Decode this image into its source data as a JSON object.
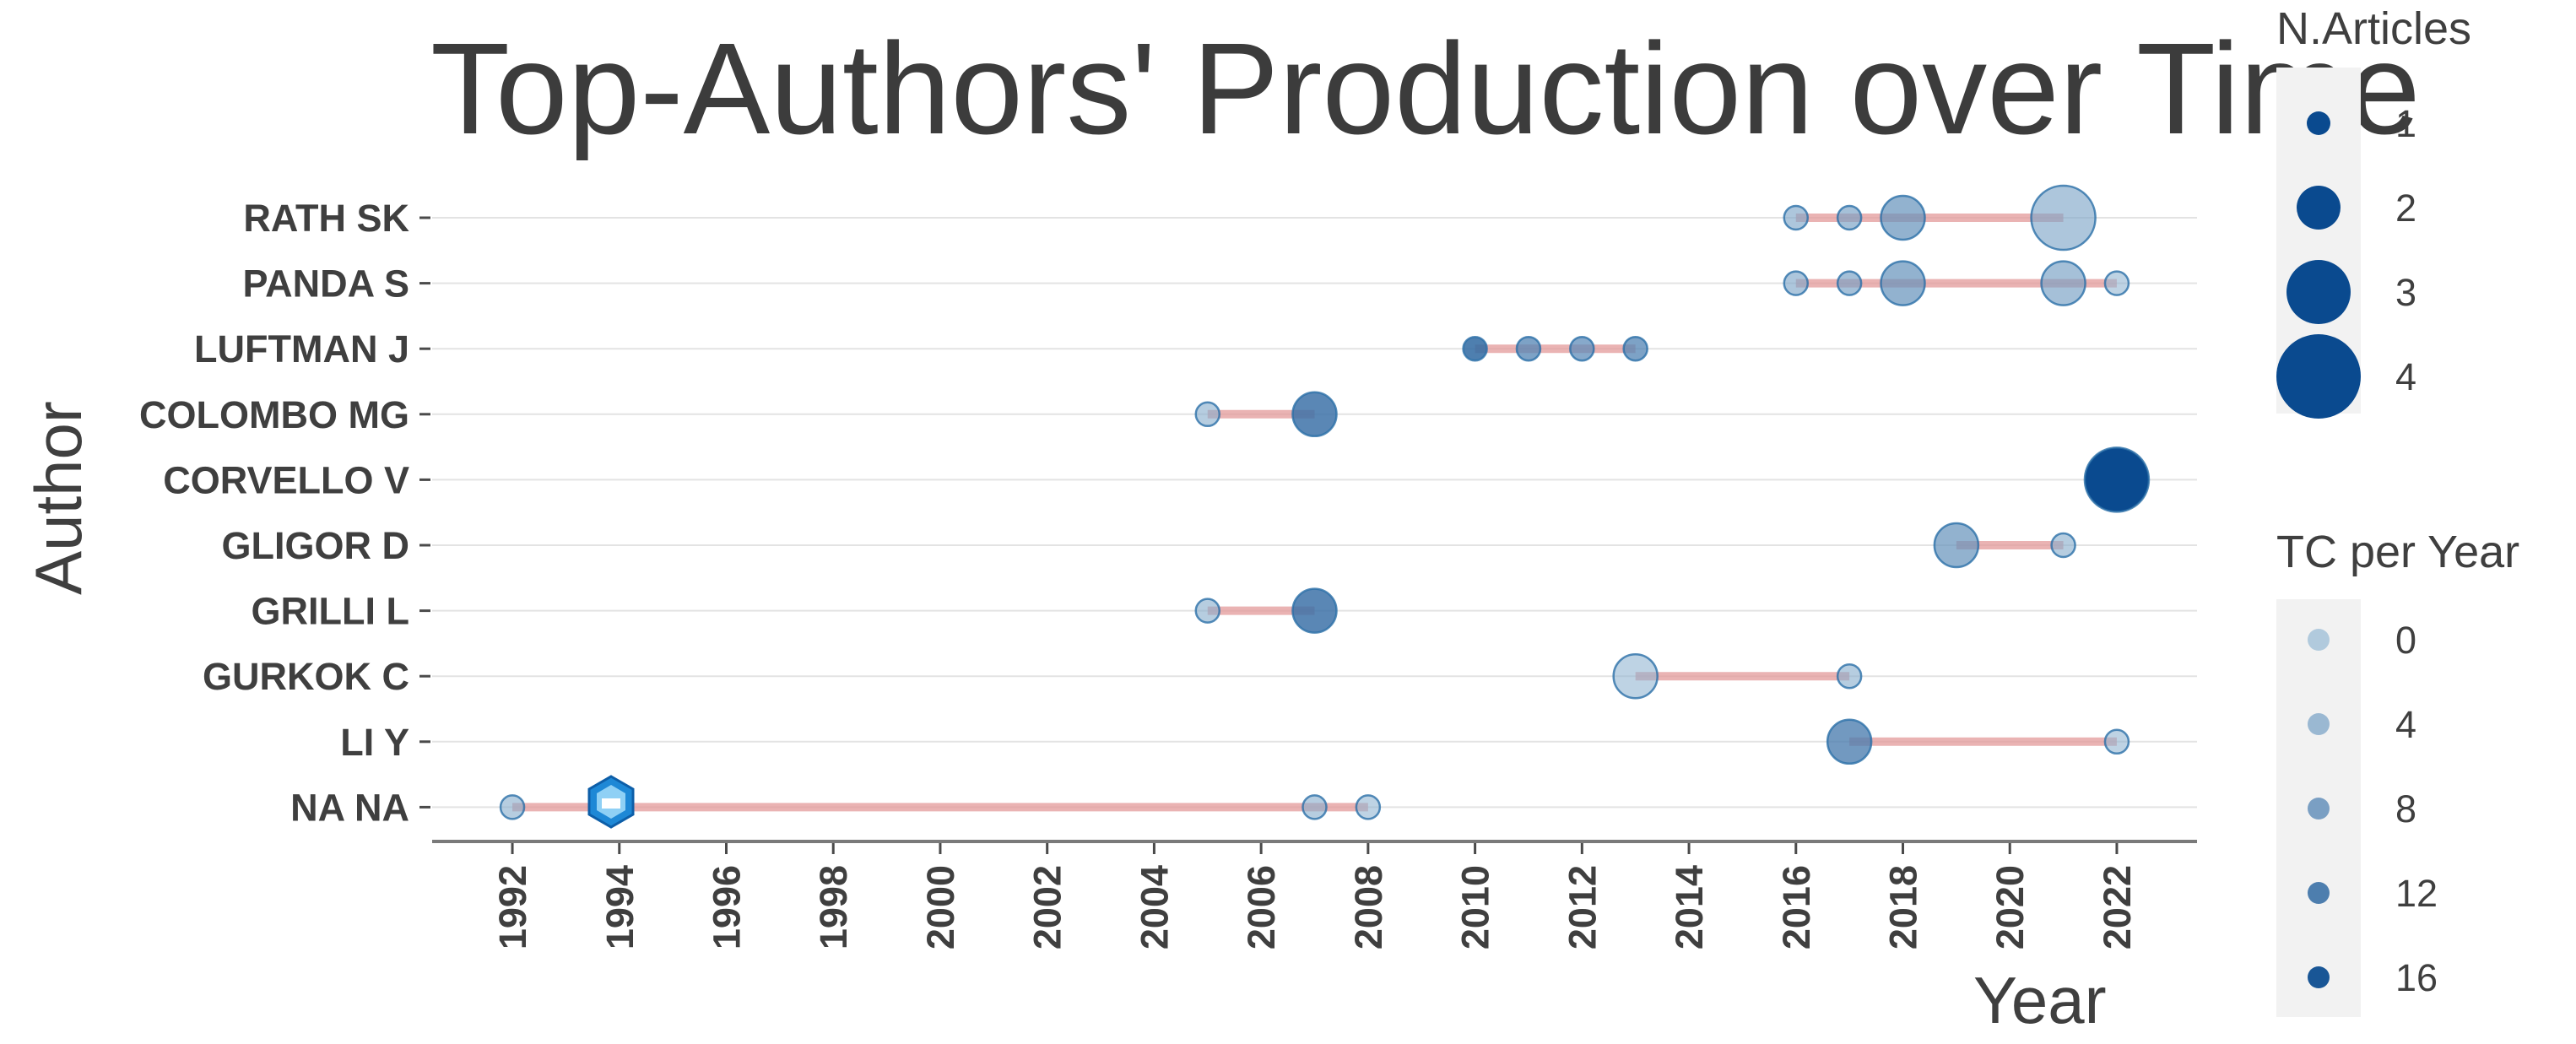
{
  "chart_data": {
    "type": "scatter",
    "title": "Top-Authors' Production over Time",
    "xlabel": "Year",
    "ylabel": "Author",
    "xlim": [
      1990.5,
      2023.5
    ],
    "x_ticks": [
      "1992",
      "1994",
      "1996",
      "1998",
      "2000",
      "2002",
      "2004",
      "2006",
      "2008",
      "2010",
      "2012",
      "2014",
      "2016",
      "2018",
      "2020",
      "2022"
    ],
    "authors": [
      "RATH SK",
      "PANDA S",
      "LUFTMAN J",
      "COLOMBO MG",
      "CORVELLO V",
      "GLIGOR D",
      "GRILLI L",
      "GURKOK C",
      "LI Y",
      "NA NA"
    ],
    "series": [
      {
        "author": "RATH SK",
        "range": [
          2016,
          2021
        ],
        "points": [
          {
            "year": 2016,
            "articles": 1,
            "tc_per_year": 3
          },
          {
            "year": 2017,
            "articles": 1,
            "tc_per_year": 4
          },
          {
            "year": 2018,
            "articles": 2,
            "tc_per_year": 6
          },
          {
            "year": 2021,
            "articles": 3,
            "tc_per_year": 3
          }
        ]
      },
      {
        "author": "PANDA S",
        "range": [
          2016,
          2022
        ],
        "points": [
          {
            "year": 2016,
            "articles": 1,
            "tc_per_year": 3
          },
          {
            "year": 2017,
            "articles": 1,
            "tc_per_year": 4
          },
          {
            "year": 2018,
            "articles": 2,
            "tc_per_year": 6
          },
          {
            "year": 2021,
            "articles": 2,
            "tc_per_year": 4
          },
          {
            "year": 2022,
            "articles": 1,
            "tc_per_year": 1
          }
        ]
      },
      {
        "author": "LUFTMAN J",
        "range": [
          2010,
          2013
        ],
        "points": [
          {
            "year": 2010,
            "articles": 1,
            "tc_per_year": 12
          },
          {
            "year": 2011,
            "articles": 1,
            "tc_per_year": 8
          },
          {
            "year": 2012,
            "articles": 1,
            "tc_per_year": 7
          },
          {
            "year": 2013,
            "articles": 1,
            "tc_per_year": 8
          }
        ]
      },
      {
        "author": "COLOMBO MG",
        "range": [
          2005,
          2007
        ],
        "points": [
          {
            "year": 2005,
            "articles": 1,
            "tc_per_year": 2
          },
          {
            "year": 2007,
            "articles": 2,
            "tc_per_year": 11
          }
        ]
      },
      {
        "author": "CORVELLO V",
        "range": [
          2022,
          2022
        ],
        "points": [
          {
            "year": 2022,
            "articles": 3,
            "tc_per_year": 17
          }
        ]
      },
      {
        "author": "GLIGOR D",
        "range": [
          2019,
          2021
        ],
        "points": [
          {
            "year": 2019,
            "articles": 2,
            "tc_per_year": 6
          },
          {
            "year": 2021,
            "articles": 1,
            "tc_per_year": 2
          }
        ]
      },
      {
        "author": "GRILLI L",
        "range": [
          2005,
          2007
        ],
        "points": [
          {
            "year": 2005,
            "articles": 1,
            "tc_per_year": 2
          },
          {
            "year": 2007,
            "articles": 2,
            "tc_per_year": 11
          }
        ]
      },
      {
        "author": "GURKOK C",
        "range": [
          2013,
          2017
        ],
        "points": [
          {
            "year": 2013,
            "articles": 2,
            "tc_per_year": 1
          },
          {
            "year": 2017,
            "articles": 1,
            "tc_per_year": 2
          }
        ]
      },
      {
        "author": "LI Y",
        "range": [
          2017,
          2022
        ],
        "points": [
          {
            "year": 2017,
            "articles": 2,
            "tc_per_year": 9
          },
          {
            "year": 2022,
            "articles": 1,
            "tc_per_year": 1
          }
        ]
      },
      {
        "author": "NA NA",
        "range": [
          1992,
          2008
        ],
        "points": [
          {
            "year": 1992,
            "articles": 1,
            "tc_per_year": 2
          },
          {
            "year": 2007,
            "articles": 1,
            "tc_per_year": 2
          },
          {
            "year": 2008,
            "articles": 1,
            "tc_per_year": 1
          }
        ]
      }
    ],
    "legend": {
      "size_title": "N.Articles",
      "size_entries": [
        "1",
        "2",
        "3",
        "4"
      ],
      "color_title": "TC per Year",
      "color_entries": [
        "0",
        "4",
        "8",
        "12",
        "16"
      ]
    },
    "colors": {
      "point": "#2a6fa8",
      "point_dark": "#0a4a8f",
      "segment": "#e39a9a",
      "grid": "#e3e3e3",
      "axis": "#7a7a7a",
      "legend_bg": "#f2f2f2"
    },
    "grid": true,
    "legend_position": "right"
  }
}
